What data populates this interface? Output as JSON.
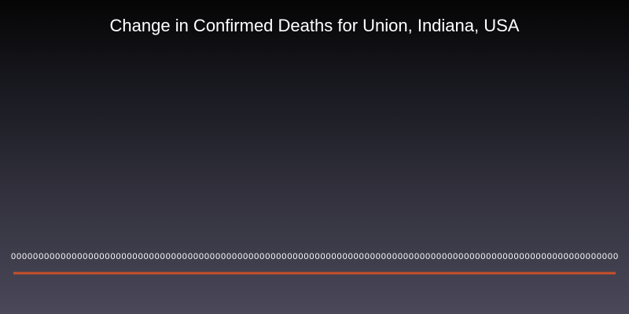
{
  "chart_data": {
    "type": "line",
    "title": "Change in Confirmed Deaths for Union, Indiana, USA",
    "xlabel": "",
    "ylabel": "",
    "point_count": 110,
    "values": [
      0,
      0,
      0,
      0,
      0,
      0,
      0,
      0,
      0,
      0,
      0,
      0,
      0,
      0,
      0,
      0,
      0,
      0,
      0,
      0,
      0,
      0,
      0,
      0,
      0,
      0,
      0,
      0,
      0,
      0,
      0,
      0,
      0,
      0,
      0,
      0,
      0,
      0,
      0,
      0,
      0,
      0,
      0,
      0,
      0,
      0,
      0,
      0,
      0,
      0,
      0,
      0,
      0,
      0,
      0,
      0,
      0,
      0,
      0,
      0,
      0,
      0,
      0,
      0,
      0,
      0,
      0,
      0,
      0,
      0,
      0,
      0,
      0,
      0,
      0,
      0,
      0,
      0,
      0,
      0,
      0,
      0,
      0,
      0,
      0,
      0,
      0,
      0,
      0,
      0,
      0,
      0,
      0,
      0,
      0,
      0,
      0,
      0,
      0,
      0,
      0,
      0,
      0,
      0,
      0,
      0,
      0,
      0,
      0,
      0
    ],
    "data_label": "0",
    "series_color": "#c8502a",
    "label_color": "#ffffff",
    "grid": false,
    "legend": "none"
  }
}
